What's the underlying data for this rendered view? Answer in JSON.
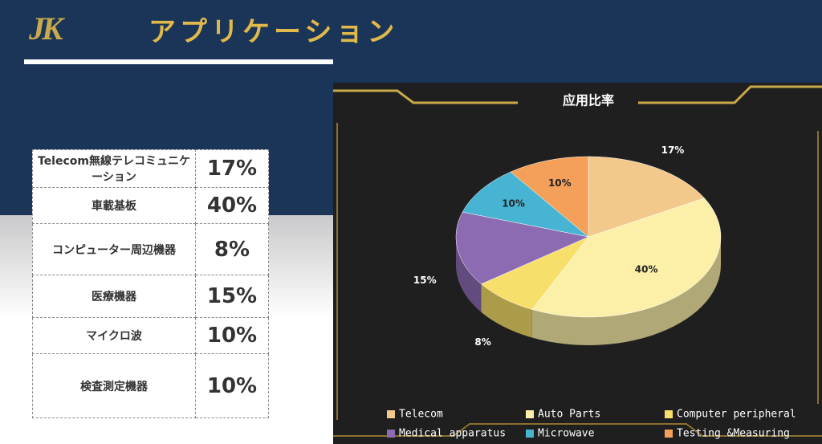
{
  "header": {
    "logo": "JK",
    "title": "アプリケーション"
  },
  "table": {
    "rows": [
      [
        "Telecom無線テレコミュニケーション",
        "17%"
      ],
      [
        "車載基板",
        "40%"
      ],
      [
        "コンピューター周辺機器",
        "8%"
      ],
      [
        "医療機器",
        "15%"
      ],
      [
        "マイクロ波",
        "10%"
      ],
      [
        "検査測定機器",
        "10%"
      ]
    ]
  },
  "chart_data": {
    "type": "pie",
    "title": "应用比率",
    "categories": [
      "Telecom",
      "Auto Parts",
      "Computer peripheral",
      "Medical apparatus",
      "Microwave",
      "Testing &Measuring"
    ],
    "values": [
      17,
      40,
      8,
      15,
      10,
      10
    ],
    "value_labels": [
      "17%",
      "40%",
      "8%",
      "15%",
      "10%",
      "10%"
    ],
    "colors": [
      "#f2c98a",
      "#fcf0a8",
      "#f6df6a",
      "#8c6bb3",
      "#46b4d2",
      "#f4a05a"
    ]
  }
}
